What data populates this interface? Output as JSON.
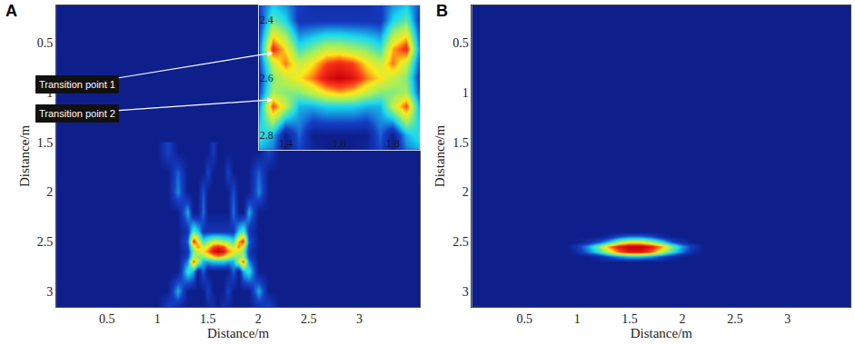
{
  "chart_data": [
    {
      "type": "heatmap",
      "title": "A",
      "x_label": "Distance/m",
      "y_label": "Distance/m",
      "xlim": [
        0,
        3.6
      ],
      "ylim": [
        3.16,
        0.12
      ],
      "xticks": [
        0.5,
        1,
        1.5,
        2,
        2.5,
        3
      ],
      "yticks": [
        0.5,
        1,
        1.5,
        2,
        2.5,
        3
      ],
      "x": [
        0.9,
        1.0,
        1.1,
        1.2,
        1.3,
        1.35,
        1.4,
        1.45,
        1.5,
        1.55,
        1.6,
        1.65,
        1.7,
        1.75,
        1.8,
        1.85,
        1.9,
        2.0,
        2.1,
        2.2
      ],
      "y": [
        1.6,
        1.8,
        2.0,
        2.2,
        2.4,
        2.5,
        2.55,
        2.6,
        2.65,
        2.7,
        2.8,
        3.0,
        3.2
      ],
      "z": [
        [
          0,
          0,
          0.15,
          0,
          0,
          0,
          0,
          0,
          0,
          0.12,
          0,
          0,
          0,
          0,
          0,
          0,
          0,
          0,
          0.15,
          0
        ],
        [
          0,
          0,
          0,
          0.2,
          0,
          0,
          0,
          0,
          0.15,
          0,
          0,
          0,
          0.15,
          0,
          0,
          0,
          0,
          0.2,
          0,
          0
        ],
        [
          0,
          0,
          0,
          0.25,
          0,
          0,
          0,
          0.18,
          0,
          0,
          0,
          0,
          0,
          0.18,
          0,
          0,
          0,
          0.25,
          0,
          0
        ],
        [
          0,
          0,
          0,
          0,
          0.3,
          0,
          0,
          0.22,
          0,
          0,
          0,
          0,
          0,
          0.22,
          0,
          0,
          0.3,
          0,
          0,
          0
        ],
        [
          0,
          0,
          0,
          0,
          0.1,
          0.45,
          0.35,
          0.1,
          0.1,
          0.1,
          0.1,
          0.1,
          0.1,
          0.1,
          0.35,
          0.45,
          0.1,
          0,
          0,
          0
        ],
        [
          0,
          0,
          0,
          0,
          0.2,
          0.9,
          0.7,
          0.4,
          0.5,
          0.6,
          0.6,
          0.55,
          0.5,
          0.4,
          0.75,
          0.9,
          0.2,
          0,
          0,
          0
        ],
        [
          0,
          0,
          0,
          0,
          0.15,
          0.6,
          0.8,
          0.6,
          0.7,
          0.85,
          0.9,
          0.85,
          0.7,
          0.6,
          0.8,
          0.6,
          0.15,
          0,
          0,
          0
        ],
        [
          0,
          0,
          0,
          0,
          0.1,
          0.5,
          0.6,
          0.7,
          0.8,
          0.95,
          1.0,
          0.95,
          0.8,
          0.7,
          0.6,
          0.5,
          0.1,
          0,
          0,
          0
        ],
        [
          0,
          0,
          0,
          0,
          0.15,
          0.55,
          0.5,
          0.5,
          0.6,
          0.7,
          0.75,
          0.7,
          0.6,
          0.5,
          0.5,
          0.55,
          0.15,
          0,
          0,
          0
        ],
        [
          0,
          0,
          0,
          0,
          0.25,
          0.85,
          0.6,
          0.3,
          0.3,
          0.35,
          0.35,
          0.35,
          0.3,
          0.3,
          0.6,
          0.85,
          0.25,
          0,
          0,
          0
        ],
        [
          0,
          0,
          0,
          0,
          0.4,
          0.3,
          0,
          0.2,
          0,
          0,
          0,
          0,
          0,
          0.2,
          0,
          0.3,
          0.4,
          0,
          0,
          0
        ],
        [
          0,
          0,
          0,
          0.3,
          0,
          0,
          0,
          0,
          0.15,
          0,
          0,
          0,
          0.15,
          0,
          0,
          0,
          0,
          0.3,
          0,
          0
        ],
        [
          0,
          0,
          0.2,
          0,
          0,
          0,
          0,
          0,
          0,
          0.1,
          0,
          0.1,
          0,
          0,
          0,
          0,
          0,
          0,
          0.2,
          0
        ]
      ],
      "inset": {
        "xlim": [
          1.3,
          1.9
        ],
        "ylim": [
          2.85,
          2.35
        ],
        "xticks": [
          1.4,
          1.6,
          1.8
        ],
        "yticks": [
          2.4,
          2.6,
          2.8
        ]
      },
      "annotations": [
        "Transition point 1",
        "Transition point 2"
      ]
    },
    {
      "type": "heatmap",
      "title": "B",
      "x_label": "Distance/m",
      "y_label": "Distance/m",
      "xlim": [
        0,
        3.6
      ],
      "ylim": [
        3.16,
        0.12
      ],
      "xticks": [
        0.5,
        1,
        1.5,
        2,
        2.5,
        3
      ],
      "yticks": [
        0.5,
        1,
        1.5,
        2,
        2.5,
        3
      ],
      "x": [
        0.9,
        1.0,
        1.1,
        1.2,
        1.3,
        1.4,
        1.5,
        1.6,
        1.7,
        1.8,
        1.9,
        2.0,
        2.1,
        2.2
      ],
      "y": [
        2.4,
        2.45,
        2.5,
        2.55,
        2.6,
        2.65,
        2.7
      ],
      "z": [
        [
          0,
          0,
          0,
          0,
          0,
          0,
          0,
          0,
          0,
          0,
          0,
          0,
          0,
          0
        ],
        [
          0,
          0,
          0,
          0,
          0.05,
          0.15,
          0.2,
          0.2,
          0.15,
          0.05,
          0,
          0,
          0,
          0
        ],
        [
          0,
          0,
          0.05,
          0.15,
          0.3,
          0.5,
          0.6,
          0.6,
          0.5,
          0.35,
          0.15,
          0.05,
          0,
          0
        ],
        [
          0,
          0.1,
          0.25,
          0.45,
          0.7,
          0.85,
          0.9,
          0.9,
          0.85,
          0.7,
          0.45,
          0.25,
          0.1,
          0
        ],
        [
          0,
          0.05,
          0.2,
          0.35,
          0.55,
          0.75,
          0.85,
          0.85,
          0.75,
          0.55,
          0.35,
          0.2,
          0.05,
          0
        ],
        [
          0,
          0,
          0,
          0.05,
          0.15,
          0.25,
          0.3,
          0.3,
          0.25,
          0.15,
          0.05,
          0,
          0,
          0
        ],
        [
          0,
          0,
          0,
          0,
          0,
          0,
          0,
          0,
          0,
          0,
          0,
          0,
          0,
          0
        ]
      ]
    }
  ]
}
